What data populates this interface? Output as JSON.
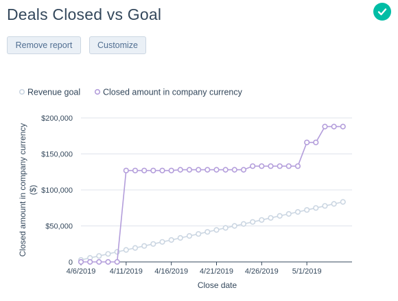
{
  "header": {
    "title": "Deals Closed vs Goal",
    "status_icon": "checkmark-icon",
    "status_color": "#00bda5"
  },
  "toolbar": {
    "remove_label": "Remove report",
    "customize_label": "Customize"
  },
  "chart_data": {
    "type": "line",
    "xlabel": "Close date",
    "ylabel": "Closed amount in company currency ($)",
    "x_ticks": [
      "4/6/2019",
      "4/11/2019",
      "4/16/2019",
      "4/21/2019",
      "4/26/2019",
      "5/1/2019"
    ],
    "y_ticks": [
      "0",
      "$50,000",
      "$100,000",
      "$150,000",
      "$200,000"
    ],
    "ylim": [
      0,
      200000
    ],
    "xlim": [
      "2019-04-06",
      "2019-05-06"
    ],
    "legend_position": "top-left",
    "grid": "horizontal",
    "series": [
      {
        "name": "Revenue goal",
        "color": "#cbd6e2",
        "x": [
          "2019-04-06",
          "2019-04-07",
          "2019-04-08",
          "2019-04-09",
          "2019-04-10",
          "2019-04-11",
          "2019-04-12",
          "2019-04-13",
          "2019-04-14",
          "2019-04-15",
          "2019-04-16",
          "2019-04-17",
          "2019-04-18",
          "2019-04-19",
          "2019-04-20",
          "2019-04-21",
          "2019-04-22",
          "2019-04-23",
          "2019-04-24",
          "2019-04-25",
          "2019-04-26",
          "2019-04-27",
          "2019-04-28",
          "2019-04-29",
          "2019-04-30",
          "2019-05-01",
          "2019-05-02",
          "2019-05-03",
          "2019-05-04",
          "2019-05-05"
        ],
        "values": [
          2800,
          5600,
          8300,
          11100,
          13900,
          16700,
          19400,
          22200,
          25000,
          27800,
          30500,
          33300,
          36100,
          38900,
          41700,
          44400,
          47200,
          50000,
          52800,
          55500,
          58300,
          61100,
          63900,
          66700,
          69400,
          72200,
          75000,
          77800,
          80600,
          83300
        ]
      },
      {
        "name": "Closed amount in company currency",
        "color": "#b39ddb",
        "x": [
          "2019-04-06",
          "2019-04-07",
          "2019-04-08",
          "2019-04-09",
          "2019-04-10",
          "2019-04-11",
          "2019-04-12",
          "2019-04-13",
          "2019-04-14",
          "2019-04-15",
          "2019-04-16",
          "2019-04-17",
          "2019-04-18",
          "2019-04-19",
          "2019-04-20",
          "2019-04-21",
          "2019-04-22",
          "2019-04-23",
          "2019-04-24",
          "2019-04-25",
          "2019-04-26",
          "2019-04-27",
          "2019-04-28",
          "2019-04-29",
          "2019-04-30",
          "2019-05-01",
          "2019-05-02",
          "2019-05-03",
          "2019-05-04",
          "2019-05-05"
        ],
        "values": [
          0,
          0,
          0,
          0,
          0,
          127000,
          127000,
          127000,
          127000,
          127000,
          127000,
          128000,
          128000,
          128000,
          128000,
          128000,
          128000,
          128000,
          128000,
          133000,
          133000,
          133000,
          133000,
          133000,
          133000,
          166000,
          166000,
          188000,
          188000,
          188000
        ]
      }
    ]
  }
}
